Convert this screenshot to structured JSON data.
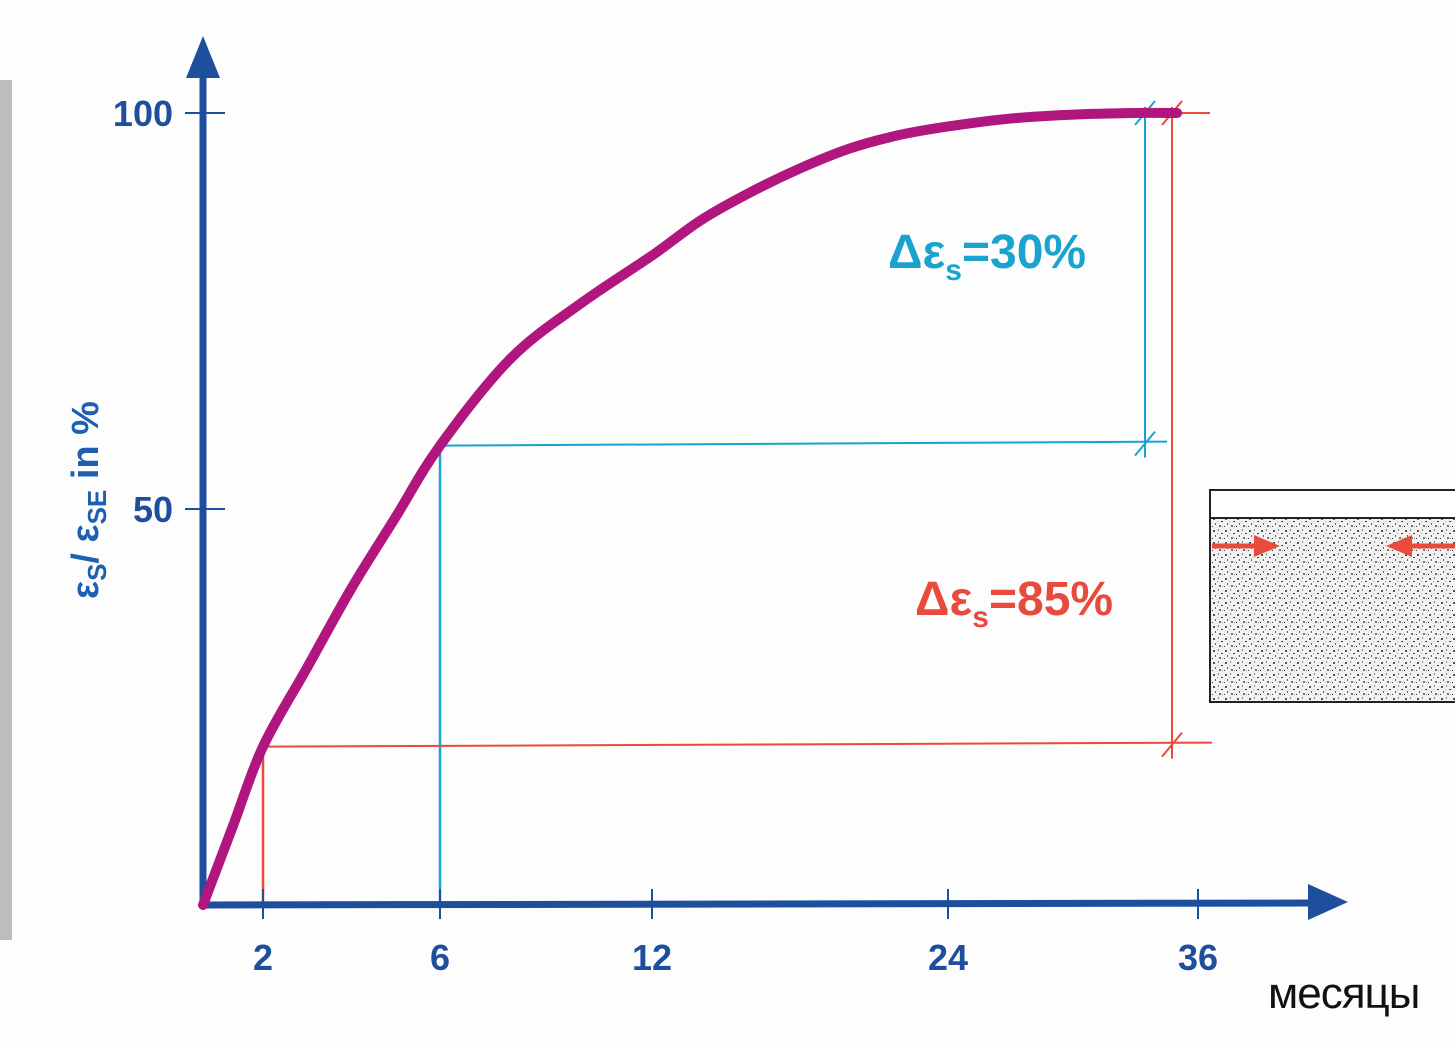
{
  "chart_data": {
    "type": "line",
    "ylabel_parts": {
      "eps1": "ε",
      "sub1": "S",
      "slash": "/ ",
      "eps2": "ε",
      "sub2": "SE",
      "tail": " in %"
    },
    "xlabel": "месяцы",
    "x_ticks": [
      {
        "value": 2,
        "label": "2"
      },
      {
        "value": 6,
        "label": "6"
      },
      {
        "value": 12,
        "label": "12"
      },
      {
        "value": 24,
        "label": "24"
      },
      {
        "value": 36,
        "label": "36"
      }
    ],
    "y_ticks": [
      {
        "value": 50,
        "label": "50"
      },
      {
        "value": 100,
        "label": "100"
      }
    ],
    "series": [
      {
        "color": "#b0167e",
        "points": [
          [
            0,
            0
          ],
          [
            1,
            10
          ],
          [
            2,
            20
          ],
          [
            3,
            30
          ],
          [
            4,
            40
          ],
          [
            5,
            49
          ],
          [
            6,
            58
          ],
          [
            8,
            69
          ],
          [
            10,
            76
          ],
          [
            12,
            82
          ],
          [
            14,
            86.5
          ],
          [
            16,
            90
          ],
          [
            18,
            93
          ],
          [
            20,
            95.5
          ],
          [
            22,
            97.2
          ],
          [
            24,
            98.3
          ],
          [
            27,
            99.3
          ],
          [
            30,
            99.8
          ],
          [
            33,
            100
          ],
          [
            35,
            100
          ]
        ]
      }
    ],
    "annotations": [
      {
        "id": "delta-30",
        "delta": "Δε",
        "sub": "s",
        "value": "=30%",
        "color": "#1aa3cf",
        "from_x": 6,
        "from_y": 58,
        "to_x": 34,
        "to_y": 100
      },
      {
        "id": "delta-85",
        "delta": "Δε",
        "sub": "s",
        "value": "=85%",
        "color": "#e84a3c",
        "from_x": 2,
        "from_y": 20,
        "to_x": 35,
        "to_y": 100
      }
    ],
    "colors": {
      "axis": "#1d4f9c",
      "curve": "#b0167e",
      "cyan": "#1aa3cf",
      "red": "#e84a3c"
    }
  }
}
